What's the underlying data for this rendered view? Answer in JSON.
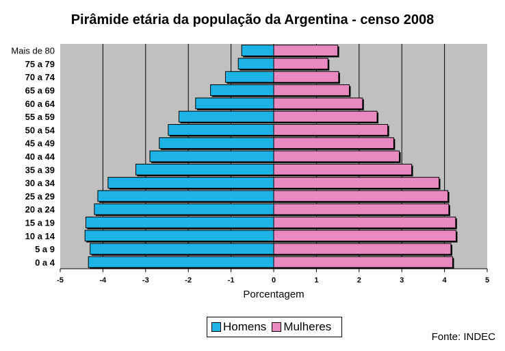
{
  "colors": {
    "male": "#1cb4e6",
    "female": "#e88ac0",
    "plot_bg": "#c0c0c0",
    "grid": "#000000"
  },
  "chart_data": {
    "type": "bar",
    "orientation": "horizontal",
    "title": "Pirâmide etária da população da Argentina - censo 2008",
    "xlabel": "Porcentagem",
    "ylabel": "",
    "xlim": [
      -5,
      5
    ],
    "xticks": [
      "-5",
      "-4",
      "-3",
      "-2",
      "-1",
      "0",
      "1",
      "2",
      "3",
      "4",
      "5"
    ],
    "grid": true,
    "legend_position": "bottom",
    "categories": [
      "Mais de 80",
      "75 a 79",
      "70 a 74",
      "65 a 69",
      "60 a 64",
      "55 a 59",
      "50 a 54",
      "45 a 49",
      "40 a 44",
      "35 a 39",
      "30 a 34",
      "25 a 29",
      "20 a 24",
      "15 a 19",
      "10 a 14",
      "5 a 9",
      "0 a 4"
    ],
    "series": [
      {
        "name": "Homens",
        "values": [
          -0.75,
          -0.83,
          -1.13,
          -1.48,
          -1.83,
          -2.22,
          -2.47,
          -2.68,
          -2.9,
          -3.23,
          -3.88,
          -4.12,
          -4.2,
          -4.4,
          -4.42,
          -4.3,
          -4.34
        ]
      },
      {
        "name": "Mulheres",
        "values": [
          1.5,
          1.27,
          1.52,
          1.77,
          2.08,
          2.42,
          2.67,
          2.81,
          2.94,
          3.23,
          3.87,
          4.08,
          4.1,
          4.26,
          4.27,
          4.15,
          4.19
        ]
      }
    ]
  },
  "source": "Fonte: INDEC"
}
